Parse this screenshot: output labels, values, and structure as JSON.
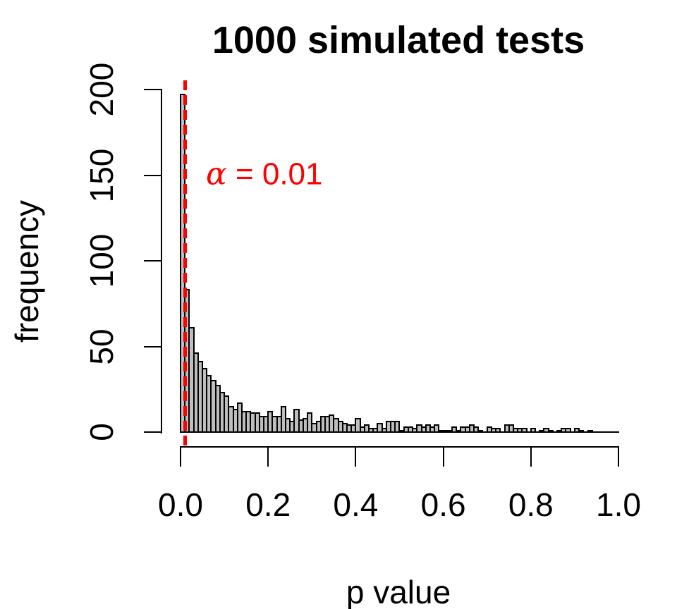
{
  "title": "1000 simulated tests",
  "axes": {
    "x_label": "p value",
    "y_label": "frequency"
  },
  "annotation": {
    "symbol": "α",
    "text": " = 0.01",
    "color": "#FF0000"
  },
  "chart_data": {
    "type": "bar",
    "subtype": "histogram",
    "title": "1000 simulated tests",
    "xlabel": "p value",
    "ylabel": "frequency",
    "bin_start": 0,
    "bin_width": 0.01,
    "xlim": [
      0,
      1
    ],
    "ylim": [
      0,
      200
    ],
    "grid": false,
    "x_ticks": [
      {
        "value": 0.0,
        "label": "0.0"
      },
      {
        "value": 0.2,
        "label": "0.2"
      },
      {
        "value": 0.4,
        "label": "0.4"
      },
      {
        "value": 0.6,
        "label": "0.6"
      },
      {
        "value": 0.8,
        "label": "0.8"
      },
      {
        "value": 1.0,
        "label": "1.0"
      }
    ],
    "y_ticks": [
      {
        "value": 0,
        "label": "0"
      },
      {
        "value": 50,
        "label": "50"
      },
      {
        "value": 100,
        "label": "100"
      },
      {
        "value": 150,
        "label": "150"
      },
      {
        "value": 200,
        "label": "200"
      }
    ],
    "values": [
      197,
      83,
      61,
      46,
      41,
      37,
      33,
      30,
      27,
      23,
      21,
      15,
      13,
      17,
      12,
      12,
      11,
      11,
      9,
      9,
      12,
      9,
      9,
      15,
      8,
      6,
      13,
      7,
      8,
      11,
      5,
      6,
      9,
      9,
      10,
      8,
      6,
      5,
      4,
      4,
      8,
      3,
      4,
      2,
      2,
      5,
      2,
      6,
      6,
      6,
      1,
      3,
      3,
      2,
      4,
      3,
      4,
      3,
      4,
      1,
      1,
      1,
      3,
      1,
      3,
      3,
      4,
      3,
      1,
      0,
      3,
      2,
      2,
      0,
      4,
      4,
      2,
      2,
      2,
      0,
      2,
      0,
      1,
      2,
      1,
      0,
      1,
      2,
      2,
      0,
      2,
      1,
      0,
      1,
      0,
      0,
      0,
      0,
      0,
      0
    ],
    "total_count": 1000,
    "bar_fill": "#BEBEBE",
    "bar_border": "#000000",
    "vline": {
      "x": 0.01,
      "color": "#FF0000",
      "style": "dashed",
      "label": "α = 0.01"
    }
  }
}
